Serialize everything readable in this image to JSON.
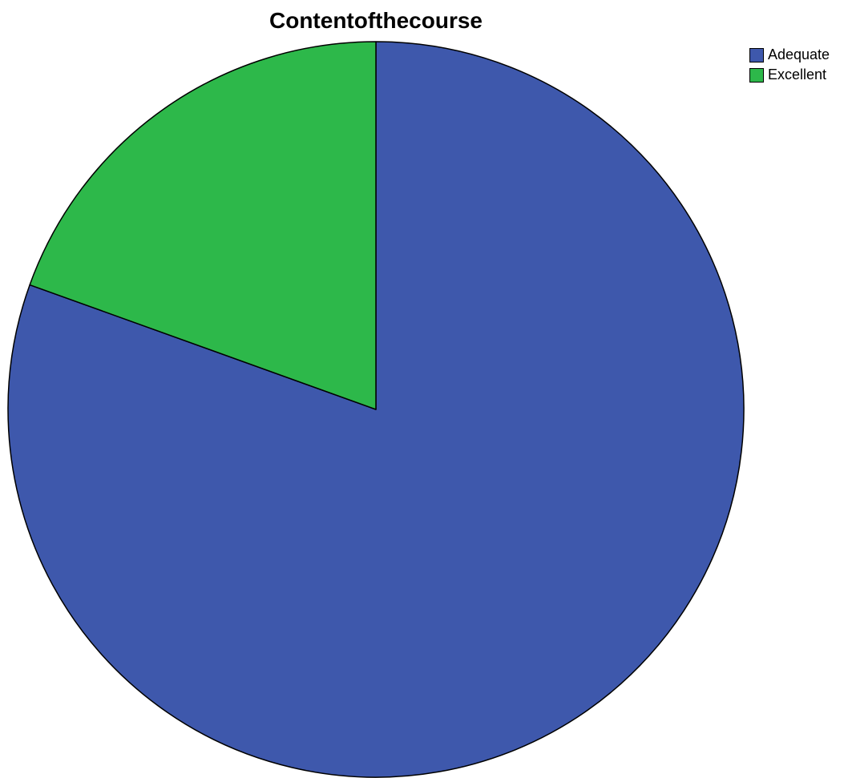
{
  "chart_data": {
    "type": "pie",
    "title": "Contentofthecourse",
    "slices": [
      {
        "label": "Adequate",
        "value": 80.5,
        "color": "#3e58ac"
      },
      {
        "label": "Excellent",
        "value": 19.5,
        "color": "#2db84a"
      }
    ],
    "start_angle_deg": 0,
    "direction": "clockwise",
    "legend_position": "top-right",
    "grid": false
  }
}
